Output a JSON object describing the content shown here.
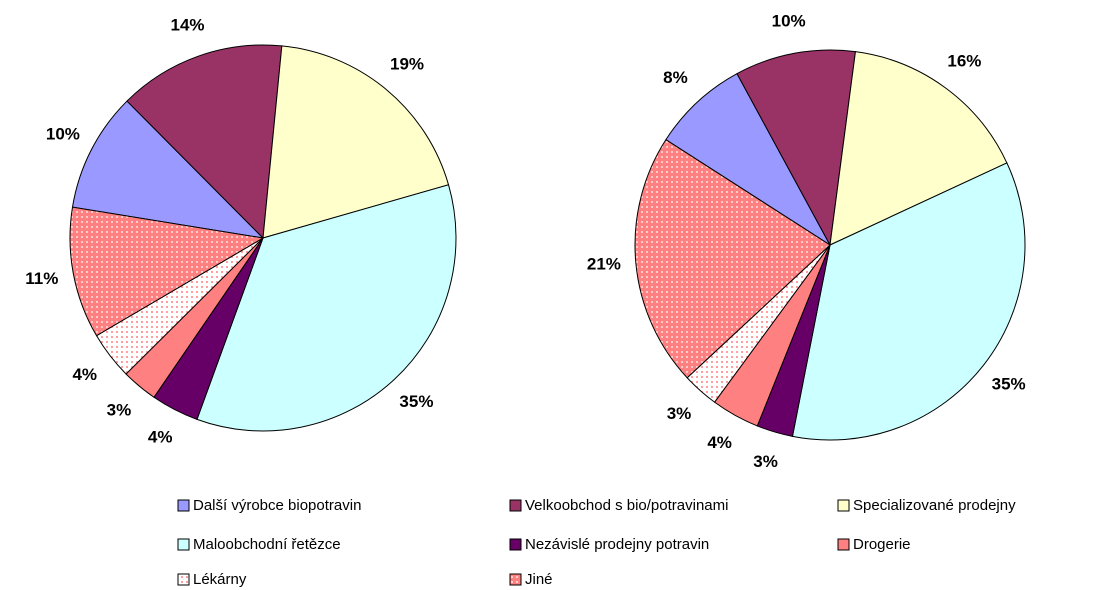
{
  "legend": {
    "labels": [
      "Další výrobce biopotravin",
      "Velkoobchod s bio/potravinami",
      "Specializované prodejny",
      "Maloobchodní řetězce",
      "Nezávislé prodejny potravin",
      "Drogerie",
      "Lékárny",
      "Jiné"
    ],
    "colors": [
      "#9999ff",
      "#993366",
      "#ffffcc",
      "#ccffff",
      "#660066",
      "#ff8080",
      "#ffd6d6",
      "#ff9999"
    ]
  },
  "chart_data": [
    {
      "type": "pie",
      "values": [
        10,
        14,
        19,
        35,
        4,
        3,
        4,
        11
      ],
      "value_labels": [
        "10%",
        "14%",
        "19%",
        "35%",
        "4%",
        "3%",
        "4%",
        "11%"
      ]
    },
    {
      "type": "pie",
      "values": [
        8,
        10,
        16,
        35,
        3,
        4,
        3,
        21
      ],
      "value_labels": [
        "8%",
        "10%",
        "16%",
        "35%",
        "3%",
        "4%",
        "3%",
        "21%"
      ]
    }
  ]
}
